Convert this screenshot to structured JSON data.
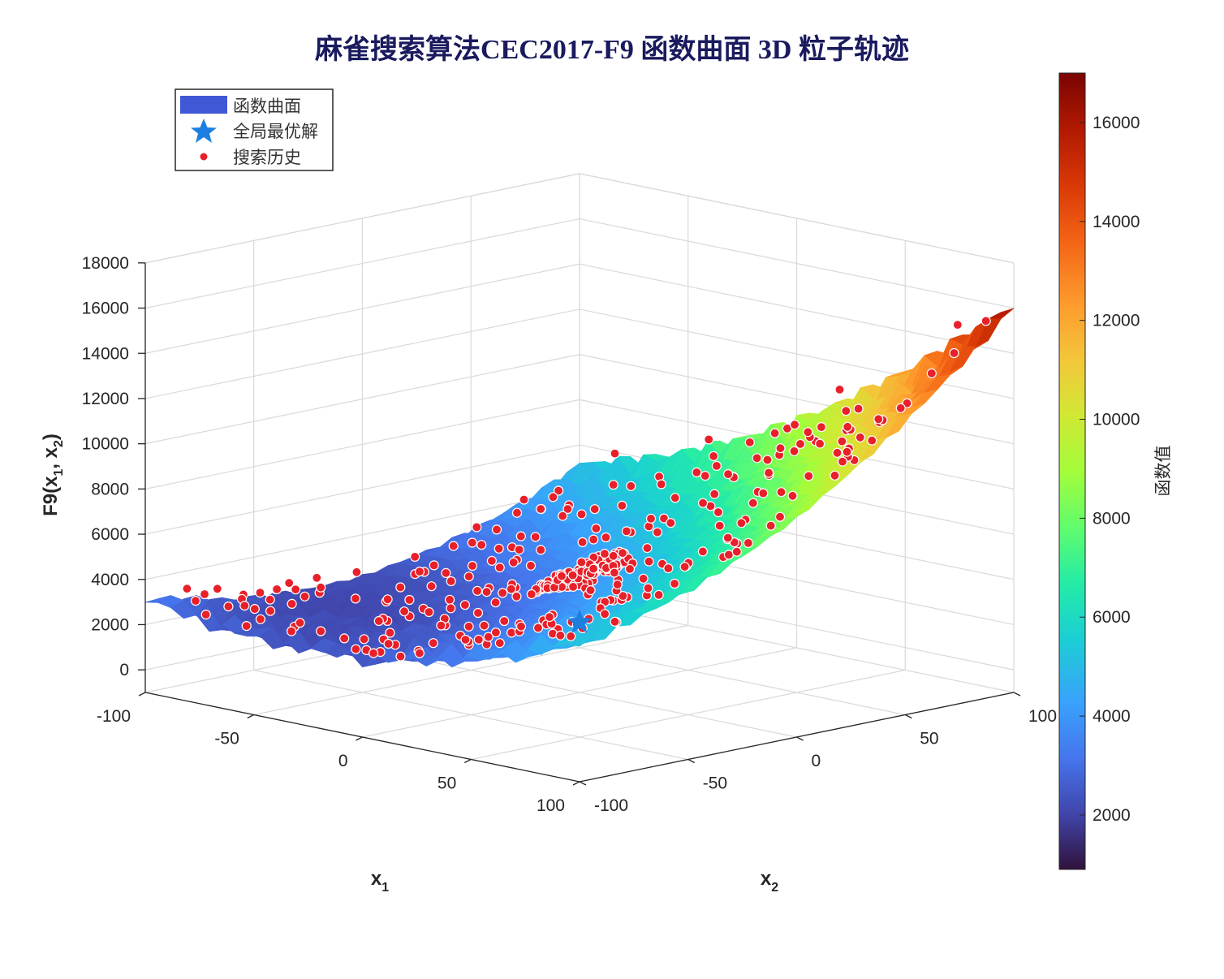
{
  "chart_data": {
    "type": "surface3d",
    "title": "麻雀搜索算法CEC2017-F9 函数曲面 3D 粒子轨迹",
    "xlabel": "x",
    "xlabel_sub": "1",
    "ylabel": "x",
    "ylabel_sub": "2",
    "zlabel": "F9(x",
    "zlabel_sub1": "1",
    "zlabel_mid": ", x",
    "zlabel_sub2": "2",
    "zlabel_end": ")",
    "x_range": [
      -100,
      100
    ],
    "y_range": [
      -100,
      100
    ],
    "z_range": [
      -1000,
      18000
    ],
    "x_ticks": [
      "-100",
      "-50",
      "0",
      "50",
      "100"
    ],
    "y_ticks": [
      "-100",
      "-50",
      "0",
      "50",
      "100"
    ],
    "z_ticks": [
      "0",
      "2000",
      "4000",
      "6000",
      "8000",
      "10000",
      "12000",
      "14000",
      "16000",
      "18000"
    ],
    "grid": true,
    "legend_position": "top-left",
    "legend": [
      {
        "name": "函数曲面",
        "color": "#4158d6",
        "marker": "patch"
      },
      {
        "name": "全局最优解",
        "color": "#1e7fe0",
        "marker": "star"
      },
      {
        "name": "搜索历史",
        "color": "#e8202a",
        "marker": "circle"
      }
    ],
    "global_optimum": {
      "x": 0,
      "y": 0,
      "z": 900
    },
    "colorbar": {
      "label": "函数值",
      "range": [
        900,
        17000
      ],
      "ticks": [
        "2000",
        "4000",
        "6000",
        "8000",
        "10000",
        "12000",
        "14000",
        "16000"
      ],
      "colormap": "turbo"
    }
  }
}
